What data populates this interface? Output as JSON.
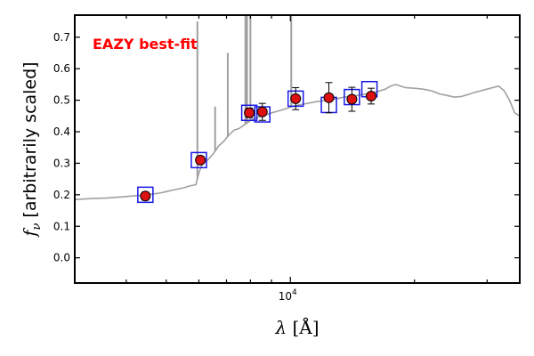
{
  "chart_data": {
    "type": "scatter",
    "annotation": "EAZY best-fit",
    "annotation_color": "#ff0000",
    "xlabel_symbol": "λ",
    "xlabel_unit": "[Å]",
    "ylabel_symbol": "f",
    "ylabel_sub": "ν",
    "ylabel_text": "[arbitrarily scaled]",
    "xscale": "log",
    "xlim": [
      3000,
      36000
    ],
    "ylim": [
      -0.08,
      0.77
    ],
    "yticks": [
      0.0,
      0.1,
      0.2,
      0.3,
      0.4,
      0.5,
      0.6,
      0.7
    ],
    "ytick_labels": [
      "0.0",
      "0.1",
      "0.2",
      "0.3",
      "0.4",
      "0.5",
      "0.6",
      "0.7"
    ],
    "xticks_major": [
      10000
    ],
    "xtick_label_base": "10",
    "xtick_label_exp": "4",
    "grid": false,
    "colors": {
      "model": "#a0a0a0",
      "point_fill": "#dd1111",
      "point_edge": "#000000",
      "box": "#1a1ae6",
      "errorbar": "#000000"
    },
    "series": [
      {
        "kind": "model_spectrum",
        "x": [
          3000,
          3300,
          3600,
          3900,
          4200,
          4500,
          4800,
          5000,
          5200,
          5500,
          5700,
          5900,
          6000,
          6100,
          6300,
          6500,
          6700,
          6900,
          7100,
          7300,
          7500,
          7700,
          7900,
          8100,
          8300,
          8500,
          8800,
          9000,
          9300,
          9600,
          10000,
          10500,
          11000,
          11500,
          12000,
          12500,
          13000,
          13500,
          14000,
          14500,
          15000,
          15500,
          16000,
          16500,
          17000,
          17500,
          18000,
          18500,
          19000,
          20000,
          21000,
          22000,
          23000,
          24000,
          25000,
          26000,
          27000,
          28000,
          29000,
          30000,
          31000,
          32000,
          33000,
          34000,
          35000,
          36000
        ],
        "y": [
          0.185,
          0.188,
          0.19,
          0.193,
          0.197,
          0.2,
          0.205,
          0.21,
          0.215,
          0.222,
          0.228,
          0.232,
          0.27,
          0.295,
          0.31,
          0.33,
          0.355,
          0.37,
          0.39,
          0.405,
          0.41,
          0.42,
          0.43,
          0.44,
          0.445,
          0.45,
          0.455,
          0.46,
          0.465,
          0.47,
          0.478,
          0.485,
          0.49,
          0.495,
          0.498,
          0.502,
          0.505,
          0.51,
          0.512,
          0.515,
          0.518,
          0.52,
          0.525,
          0.53,
          0.535,
          0.545,
          0.55,
          0.545,
          0.54,
          0.538,
          0.535,
          0.53,
          0.52,
          0.515,
          0.51,
          0.512,
          0.518,
          0.525,
          0.53,
          0.535,
          0.54,
          0.545,
          0.53,
          0.5,
          0.46,
          0.45
        ]
      },
      {
        "kind": "emission_lines",
        "lines": [
          {
            "x": 5950,
            "y": 0.75
          },
          {
            "x": 6570,
            "y": 0.48
          },
          {
            "x": 7050,
            "y": 0.65
          },
          {
            "x": 7780,
            "y": 0.77
          },
          {
            "x": 7850,
            "y": 0.77
          },
          {
            "x": 8000,
            "y": 0.77
          },
          {
            "x": 10050,
            "y": 0.77
          }
        ]
      },
      {
        "kind": "model_photometry",
        "x": [
          4450,
          6000,
          7950,
          8550,
          10300,
          12400,
          14100,
          15550
        ],
        "y": [
          0.2,
          0.31,
          0.46,
          0.455,
          0.505,
          0.485,
          0.51,
          0.535
        ]
      },
      {
        "kind": "observed_photometry",
        "x": [
          4450,
          6050,
          7950,
          8550,
          10300,
          12400,
          14100,
          15700
        ],
        "y": [
          0.196,
          0.31,
          0.46,
          0.463,
          0.505,
          0.508,
          0.503,
          0.513
        ],
        "yerr": [
          0.013,
          0.012,
          0.015,
          0.027,
          0.035,
          0.048,
          0.038,
          0.025
        ]
      }
    ]
  }
}
